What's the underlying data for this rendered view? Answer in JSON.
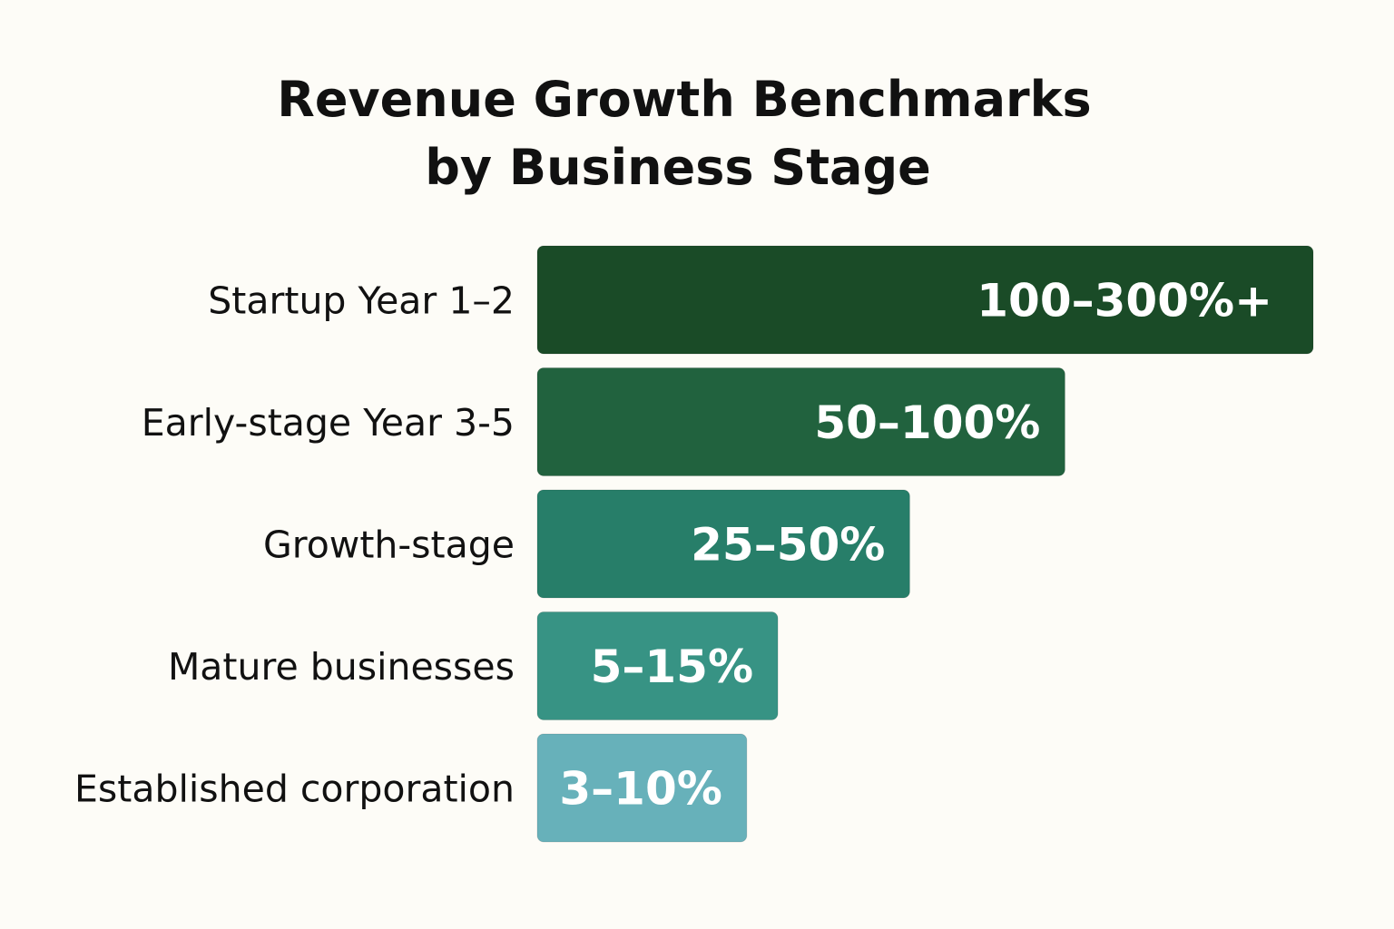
{
  "chart_data": {
    "type": "bar",
    "orientation": "horizontal",
    "title": [
      "Revenue Growth Benchmarks",
      "by Business Stage"
    ],
    "categories": [
      "Startup Year 1–2",
      "Early-stage Year 3-5",
      "Growth-stage",
      "Mature businesses",
      "Established corporation"
    ],
    "value_labels": [
      "100–300%+",
      "50–100%",
      "25–50%",
      "5–15%",
      "3–10%"
    ],
    "values": [
      100,
      68,
      48,
      31,
      27
    ],
    "xlabel": "",
    "ylabel": "",
    "grid": false,
    "colors": [
      "#1a4b27",
      "#21623e",
      "#277e69",
      "#379384",
      "#67b1ba"
    ],
    "background": "#fdfcf7"
  }
}
